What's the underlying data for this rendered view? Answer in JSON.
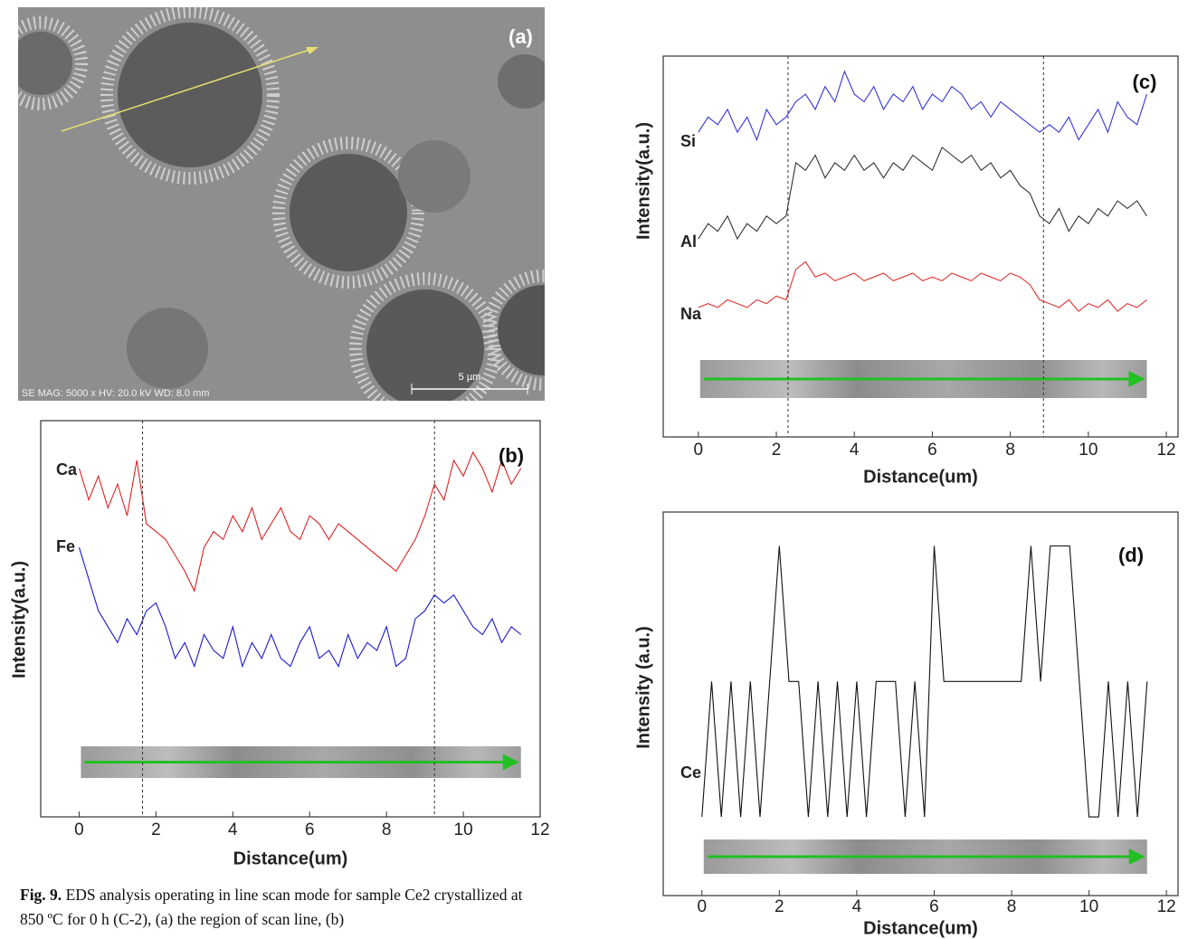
{
  "image": {
    "label": "(a)",
    "info": "SE MAG: 5000 x HV: 20.0 kV WD: 8.0 mm",
    "scale_bar": "5 µm"
  },
  "chart_data": [
    {
      "type": "line",
      "panel_label": "(b)",
      "x_label": "Distance(um)",
      "y_label": "Intensity(a.u.)",
      "x": [
        0,
        0.25,
        0.5,
        0.75,
        1,
        1.25,
        1.5,
        1.75,
        2,
        2.25,
        2.5,
        2.75,
        3,
        3.25,
        3.5,
        3.75,
        4,
        4.25,
        4.5,
        4.75,
        5,
        5.25,
        5.5,
        5.75,
        6,
        6.25,
        6.5,
        6.75,
        7,
        7.25,
        7.5,
        7.75,
        8,
        8.25,
        8.5,
        8.75,
        9,
        9.25,
        9.5,
        9.75,
        10,
        10.25,
        10.5,
        10.75,
        11,
        11.25,
        11.5
      ],
      "xlim": [
        -1,
        12
      ],
      "xticks": [
        0,
        2,
        4,
        6,
        8,
        10,
        12
      ],
      "ylim": [
        0,
        100
      ],
      "marker_lines": [
        1.65,
        9.25
      ],
      "series": [
        {
          "name": "Ca",
          "color": "#e02020",
          "values": [
            88,
            80,
            86,
            78,
            84,
            76,
            90,
            74,
            72,
            70,
            66,
            62,
            57,
            68,
            72,
            70,
            76,
            72,
            78,
            70,
            74,
            78,
            72,
            70,
            76,
            74,
            70,
            74,
            72,
            70,
            68,
            66,
            64,
            62,
            66,
            70,
            76,
            84,
            80,
            90,
            86,
            92,
            88,
            82,
            90,
            84,
            88
          ]
        },
        {
          "name": "Fe",
          "color": "#1a1ad0",
          "values": [
            68,
            60,
            52,
            48,
            44,
            50,
            46,
            52,
            54,
            48,
            40,
            44,
            38,
            46,
            42,
            40,
            48,
            38,
            44,
            40,
            46,
            40,
            38,
            44,
            48,
            40,
            42,
            38,
            46,
            40,
            44,
            42,
            48,
            38,
            40,
            50,
            52,
            56,
            54,
            56,
            52,
            48,
            46,
            50,
            44,
            48,
            46
          ]
        }
      ]
    },
    {
      "type": "line",
      "panel_label": "(c)",
      "x_label": "Distance(um)",
      "y_label": "Intensity(a.u.)",
      "x": [
        0,
        0.25,
        0.5,
        0.75,
        1,
        1.25,
        1.5,
        1.75,
        2,
        2.25,
        2.5,
        2.75,
        3,
        3.25,
        3.5,
        3.75,
        4,
        4.25,
        4.5,
        4.75,
        5,
        5.25,
        5.5,
        5.75,
        6,
        6.25,
        6.5,
        6.75,
        7,
        7.25,
        7.5,
        7.75,
        8,
        8.25,
        8.5,
        8.75,
        9,
        9.25,
        9.5,
        9.75,
        10,
        10.25,
        10.5,
        10.75,
        11,
        11.25,
        11.5
      ],
      "xlim": [
        -0.9,
        12.3
      ],
      "xticks": [
        0,
        2,
        4,
        6,
        8,
        10,
        12
      ],
      "ylim": [
        0,
        100
      ],
      "marker_lines": [
        2.3,
        8.85
      ],
      "series": [
        {
          "name": "Si",
          "color": "#3434d8",
          "values": [
            80,
            84,
            82,
            86,
            80,
            84,
            78,
            86,
            82,
            84,
            88,
            90,
            86,
            92,
            88,
            96,
            90,
            88,
            92,
            86,
            90,
            88,
            92,
            86,
            90,
            88,
            92,
            90,
            86,
            88,
            84,
            88,
            86,
            84,
            82,
            80,
            82,
            80,
            84,
            78,
            82,
            86,
            80,
            88,
            84,
            82,
            90
          ]
        },
        {
          "name": "Al",
          "color": "#333333",
          "values": [
            52,
            56,
            54,
            58,
            52,
            56,
            54,
            58,
            56,
            58,
            72,
            70,
            74,
            68,
            72,
            70,
            74,
            70,
            72,
            68,
            72,
            70,
            74,
            72,
            70,
            76,
            74,
            72,
            74,
            70,
            72,
            68,
            70,
            66,
            64,
            58,
            56,
            60,
            54,
            58,
            56,
            60,
            58,
            62,
            60,
            62,
            58
          ]
        },
        {
          "name": "Na",
          "color": "#e03030",
          "values": [
            34,
            35,
            34,
            36,
            35,
            34,
            36,
            35,
            37,
            36,
            44,
            46,
            42,
            43,
            41,
            42,
            43,
            41,
            42,
            43,
            41,
            42,
            43,
            41,
            42,
            41,
            43,
            42,
            41,
            43,
            42,
            41,
            43,
            42,
            40,
            36,
            35,
            34,
            36,
            33,
            35,
            34,
            36,
            33,
            35,
            34,
            36
          ]
        }
      ]
    },
    {
      "type": "line",
      "panel_label": "(d)",
      "x_label": "Distance(um)",
      "y_label": "Intensity (a.u.)",
      "x": [
        0,
        0.25,
        0.5,
        0.75,
        1,
        1.25,
        1.5,
        1.75,
        2,
        2.25,
        2.5,
        2.75,
        3,
        3.25,
        3.5,
        3.75,
        4,
        4.25,
        4.5,
        4.75,
        5,
        5.25,
        5.5,
        5.75,
        6,
        6.25,
        6.5,
        6.75,
        7,
        7.25,
        7.5,
        7.75,
        8,
        8.25,
        8.5,
        8.75,
        9,
        9.25,
        9.5,
        9.75,
        10,
        10.25,
        10.5,
        10.75,
        11,
        11.25,
        11.5
      ],
      "xlim": [
        -1,
        12.3
      ],
      "xticks": [
        0,
        2,
        4,
        6,
        8,
        10,
        12
      ],
      "ylim": [
        -0.58,
        2.25
      ],
      "series": [
        {
          "name": "Ce",
          "color": "#111111",
          "values": [
            0,
            1,
            0,
            1,
            0,
            1,
            0,
            1,
            2,
            1,
            1,
            0,
            1,
            0,
            1,
            0,
            1,
            0,
            1,
            1,
            1,
            0,
            1,
            0,
            2,
            1,
            1,
            1,
            1,
            1,
            1,
            1,
            1,
            1,
            2,
            1,
            2,
            2,
            2,
            1,
            0,
            0,
            1,
            0,
            1,
            0,
            1
          ]
        }
      ]
    }
  ],
  "caption": {
    "label": "Fig. 9.",
    "text": "EDS analysis operating in line scan mode for sample Ce2 crystallized at 850 ºC for 0 h (C-2), (a) the region of scan line, (b)"
  }
}
